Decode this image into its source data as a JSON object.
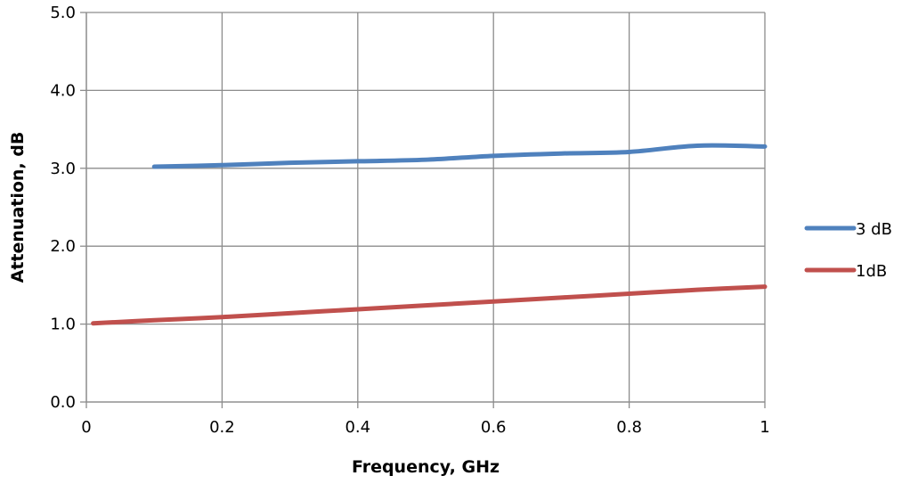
{
  "chart_data": {
    "type": "line",
    "title": "",
    "xlabel": "Frequency, GHz",
    "ylabel": "Attenuation, dB",
    "xlim": [
      0,
      1
    ],
    "ylim": [
      0,
      5
    ],
    "x_ticks": [
      0,
      0.2,
      0.4,
      0.6,
      0.8,
      1
    ],
    "x_tick_labels": [
      "0",
      "0.2",
      "0.4",
      "0.6",
      "0.8",
      "1"
    ],
    "y_ticks": [
      0,
      1,
      2,
      3,
      4,
      5
    ],
    "y_tick_labels": [
      "0.0",
      "1.0",
      "2.0",
      "3.0",
      "4.0",
      "5.0"
    ],
    "grid": true,
    "legend_position": "right",
    "series": [
      {
        "name": "3 dB",
        "color": "#4f81bd",
        "x": [
          0.1,
          0.2,
          0.3,
          0.4,
          0.5,
          0.6,
          0.7,
          0.8,
          0.9,
          1.0
        ],
        "y": [
          3.02,
          3.04,
          3.07,
          3.09,
          3.11,
          3.16,
          3.19,
          3.21,
          3.29,
          3.28
        ]
      },
      {
        "name": "1dB",
        "color": "#c0504d",
        "x": [
          0.01,
          0.1,
          0.2,
          0.3,
          0.4,
          0.5,
          0.6,
          0.7,
          0.8,
          0.9,
          1.0
        ],
        "y": [
          1.01,
          1.05,
          1.09,
          1.14,
          1.19,
          1.24,
          1.29,
          1.34,
          1.39,
          1.44,
          1.48
        ]
      }
    ]
  }
}
